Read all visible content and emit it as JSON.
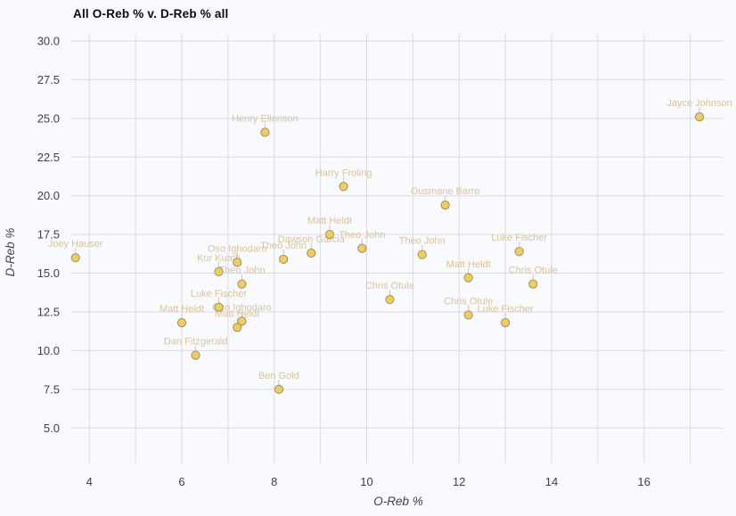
{
  "title": "All O-Reb % v. D-Reb % all",
  "colors": {
    "background": "#f9fafe",
    "grid": "#dadce0",
    "tick_text": "#3f4246",
    "title_text": "#0b0b0b",
    "marker_fill": "#f3cf4b",
    "marker_stroke": "#8f8f8f",
    "point_label_text": "#d9c497",
    "connector": "#c8c8c8"
  },
  "chart_data": {
    "type": "scatter",
    "title": "All O-Reb % v. D-Reb % all",
    "xlabel": "O-Reb %",
    "ylabel": "D-Reb %",
    "xlim": [
      3.59,
      17.72
    ],
    "ylim": [
      3.23,
      30.46
    ],
    "x_ticks": [
      4,
      6,
      8,
      10,
      12,
      14,
      16
    ],
    "x_gridlines": [
      4,
      5,
      6,
      7,
      8,
      9,
      10,
      11,
      12,
      13,
      14,
      15,
      16,
      17
    ],
    "y_ticks": [
      5.0,
      7.5,
      10.0,
      12.5,
      15.0,
      17.5,
      20.0,
      22.5,
      25.0,
      27.5,
      30.0
    ],
    "grid": true,
    "legend": false,
    "points": [
      {
        "name": "Joey Hauser",
        "x": 3.7,
        "y": 16.0
      },
      {
        "name": "Matt Heldt",
        "x": 6.0,
        "y": 11.8
      },
      {
        "name": "Dan Fitzgerald",
        "x": 6.3,
        "y": 9.7
      },
      {
        "name": "Kur Kuath",
        "x": 6.8,
        "y": 15.1
      },
      {
        "name": "Luke Fischer",
        "x": 6.8,
        "y": 12.8
      },
      {
        "name": "Oso Ighodaro",
        "x": 7.2,
        "y": 15.7
      },
      {
        "name": "Matt Heldt",
        "x": 7.2,
        "y": 11.5
      },
      {
        "name": "Theo John",
        "x": 7.3,
        "y": 14.3
      },
      {
        "name": "Oso Ighodaro",
        "x": 7.3,
        "y": 11.9
      },
      {
        "name": "Henry Ellenson",
        "x": 7.8,
        "y": 24.1
      },
      {
        "name": "Ben Gold",
        "x": 8.1,
        "y": 7.5
      },
      {
        "name": "Theo John",
        "x": 8.2,
        "y": 15.9
      },
      {
        "name": "Dawson Garcia",
        "x": 8.8,
        "y": 16.3
      },
      {
        "name": "Matt Heldt",
        "x": 9.2,
        "y": 17.5
      },
      {
        "name": "Harry Froling",
        "x": 9.5,
        "y": 20.6
      },
      {
        "name": "Theo John",
        "x": 9.9,
        "y": 16.6
      },
      {
        "name": "Chris Otule",
        "x": 10.5,
        "y": 13.3
      },
      {
        "name": "Theo John",
        "x": 11.2,
        "y": 16.2
      },
      {
        "name": "Ousmane Barro",
        "x": 11.7,
        "y": 19.4
      },
      {
        "name": "Matt Heldt",
        "x": 12.2,
        "y": 14.7
      },
      {
        "name": "Chris Otule",
        "x": 12.2,
        "y": 12.3
      },
      {
        "name": "Luke Fischer",
        "x": 13.0,
        "y": 11.8
      },
      {
        "name": "Luke Fischer",
        "x": 13.3,
        "y": 16.4
      },
      {
        "name": "Chris Otule",
        "x": 13.6,
        "y": 14.3
      },
      {
        "name": "Jayce Johnson",
        "x": 17.2,
        "y": 25.1
      }
    ]
  }
}
